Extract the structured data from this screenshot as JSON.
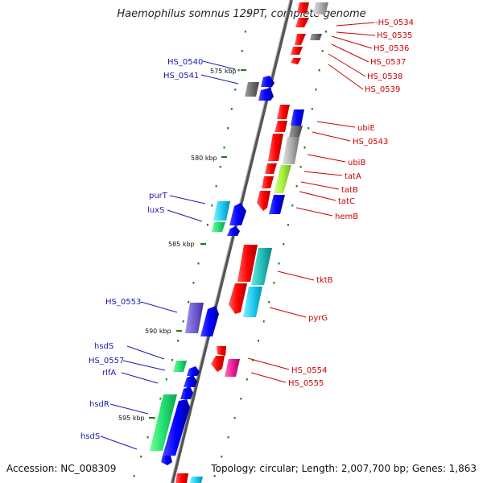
{
  "title": "Haemophilus somnus 129PT, complete genome",
  "footer": {
    "accession": "Accession: NC_008309",
    "topology": "Topology: circular; Length: 2,007,700 bp; Genes: 1,863"
  },
  "scale_labels": [
    "575 kbp",
    "580 kbp",
    "585 kbp",
    "590 kbp",
    "595 kbp"
  ],
  "gene_labels": {
    "right": [
      "-HS_0534",
      "HS_0535",
      "HS_0536",
      "HS_0537",
      "HS_0538",
      "HS_0539",
      "ubiE",
      "HS_0543",
      "ubiB",
      "tatA",
      "tatB",
      "tatC",
      "hemB",
      "tktB",
      "pyrG",
      "HS_0554",
      "HS_0555"
    ],
    "left": [
      "HS_0540",
      "HS_0541",
      "purT",
      "luxS",
      "HS_0553",
      "hsdS",
      "HS_0557",
      "rlfA",
      "hsdR",
      "hsdS"
    ]
  },
  "colors": {
    "backbone": "#808080",
    "right_label": "#cc0000",
    "left_label": "#1a1aaa",
    "tick": "#1f7a1f"
  }
}
